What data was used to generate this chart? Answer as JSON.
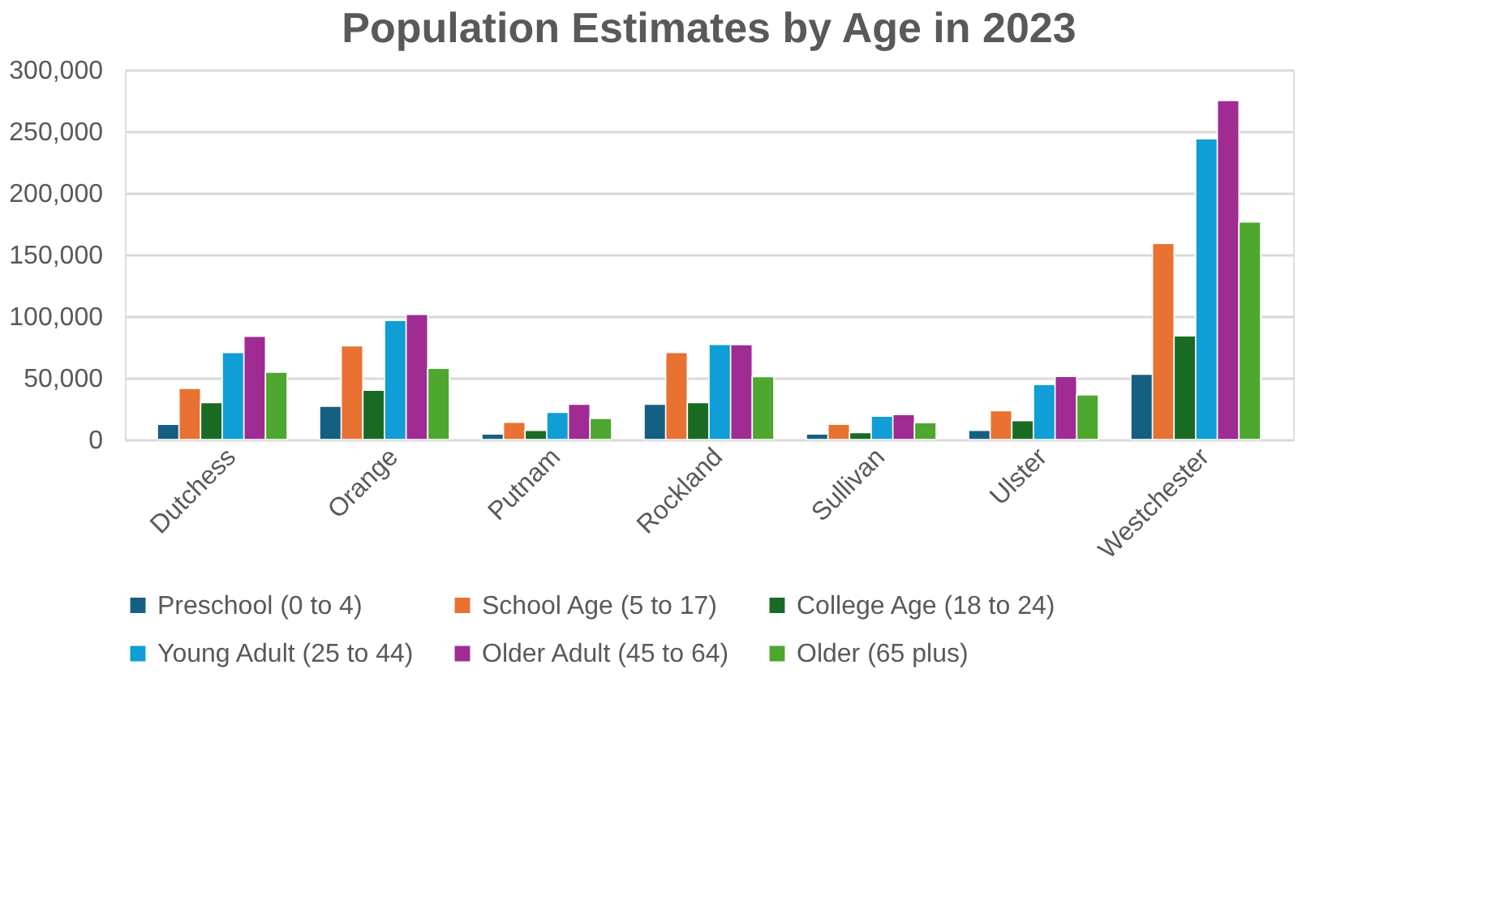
{
  "chart_data": {
    "type": "bar",
    "title": "Population Estimates by Age in 2023",
    "categories": [
      "Dutchess",
      "Orange",
      "Putnam",
      "Rockland",
      "Sullivan",
      "Ulster",
      "Westchester"
    ],
    "series": [
      {
        "name": "Preschool (0 to 4)",
        "color": "#156082",
        "values": [
          12400,
          27000,
          4400,
          28700,
          4400,
          7500,
          53000
        ]
      },
      {
        "name": "School Age (5 to 17)",
        "color": "#e97132",
        "values": [
          41500,
          76000,
          14000,
          70600,
          12400,
          23400,
          159000
        ]
      },
      {
        "name": "College Age (18 to 24)",
        "color": "#196b24",
        "values": [
          30000,
          40000,
          7500,
          30000,
          5700,
          15400,
          84000
        ]
      },
      {
        "name": "Young Adult (25 to 44)",
        "color": "#0f9ed5",
        "values": [
          70600,
          96600,
          22000,
          77200,
          19000,
          44600,
          244000
        ]
      },
      {
        "name": "Older Adult (45 to 64)",
        "color": "#a02b93",
        "values": [
          83800,
          101500,
          28700,
          77000,
          20300,
          51200,
          275000
        ]
      },
      {
        "name": "Older (65 plus)",
        "color": "#4ea72e",
        "values": [
          54700,
          57800,
          17200,
          51000,
          13700,
          36200,
          176500
        ]
      }
    ],
    "ylim": [
      0,
      300000
    ],
    "yticks": [
      {
        "value": 0,
        "label": "0"
      },
      {
        "value": 50000,
        "label": "50,000"
      },
      {
        "value": 100000,
        "label": "100,000"
      },
      {
        "value": 150000,
        "label": "150,000"
      },
      {
        "value": 200000,
        "label": "200,000"
      },
      {
        "value": 250000,
        "label": "250,000"
      },
      {
        "value": 300000,
        "label": "300,000"
      }
    ],
    "grid": "y",
    "legend": "bottom"
  }
}
